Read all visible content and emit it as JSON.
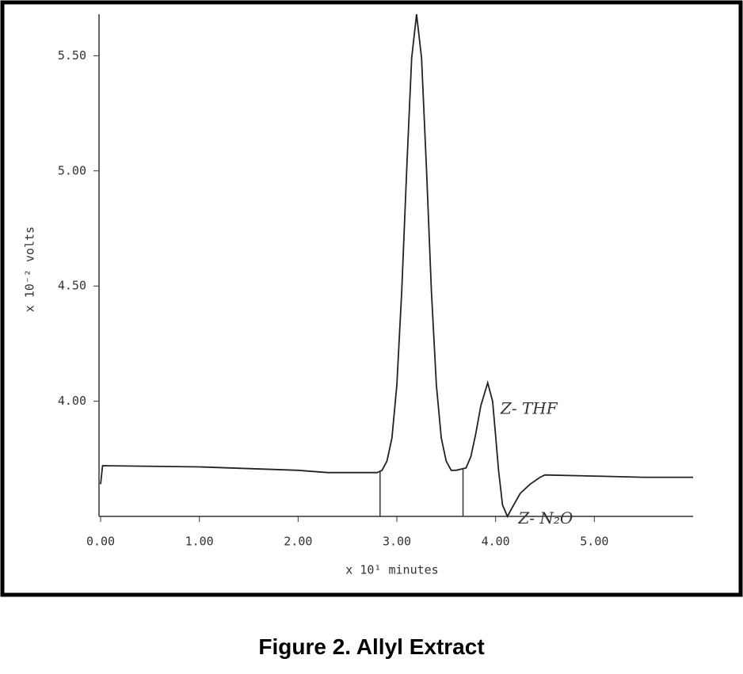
{
  "chart_data": {
    "type": "line",
    "caption": "Figure 2. Allyl Extract",
    "xlabel": "x 10¹ minutes",
    "ylabel": "x 10⁻² volts",
    "x": [
      0,
      0.02,
      1.0,
      2.0,
      2.3,
      2.8,
      2.85,
      2.9,
      2.95,
      3.0,
      3.05,
      3.1,
      3.15,
      3.2,
      3.25,
      3.3,
      3.35,
      3.4,
      3.45,
      3.5,
      3.55,
      3.6,
      3.7,
      3.75,
      3.8,
      3.85,
      3.92,
      3.97,
      4.0,
      4.03,
      4.07,
      4.12,
      4.17,
      4.25,
      4.35,
      4.45,
      4.5,
      5.0,
      5.5,
      6.0
    ],
    "series": [
      {
        "color": "#222222",
        "values": [
          3.64,
          3.72,
          3.715,
          3.7,
          3.69,
          3.69,
          3.7,
          3.74,
          3.84,
          4.07,
          4.48,
          5.01,
          5.49,
          5.68,
          5.49,
          5.01,
          4.48,
          4.07,
          3.84,
          3.74,
          3.7,
          3.7,
          3.71,
          3.76,
          3.86,
          3.98,
          4.08,
          4.0,
          3.85,
          3.7,
          3.55,
          3.5,
          3.54,
          3.6,
          3.64,
          3.67,
          3.68,
          3.675,
          3.67,
          3.67
        ]
      }
    ],
    "markers": [
      2.83,
      3.67
    ],
    "annotations": [
      {
        "text": "Z- THF",
        "x": 3.97
      },
      {
        "text": "Z- N₂O",
        "x": 4.15
      }
    ],
    "xlim": [
      0,
      6
    ],
    "ylim": [
      3.5,
      5.68
    ],
    "xticks": [
      {
        "value": 0,
        "label": "0.00"
      },
      {
        "value": 1,
        "label": "1.00"
      },
      {
        "value": 2,
        "label": "2.00"
      },
      {
        "value": 3,
        "label": "3.00"
      },
      {
        "value": 4,
        "label": "4.00"
      },
      {
        "value": 5,
        "label": "5.00"
      }
    ],
    "yticks": [
      {
        "value": 4,
        "label": "4.00"
      },
      {
        "value": 4.5,
        "label": "4.50"
      },
      {
        "value": 5,
        "label": "5.00"
      },
      {
        "value": 5.5,
        "label": "5.50"
      }
    ]
  }
}
